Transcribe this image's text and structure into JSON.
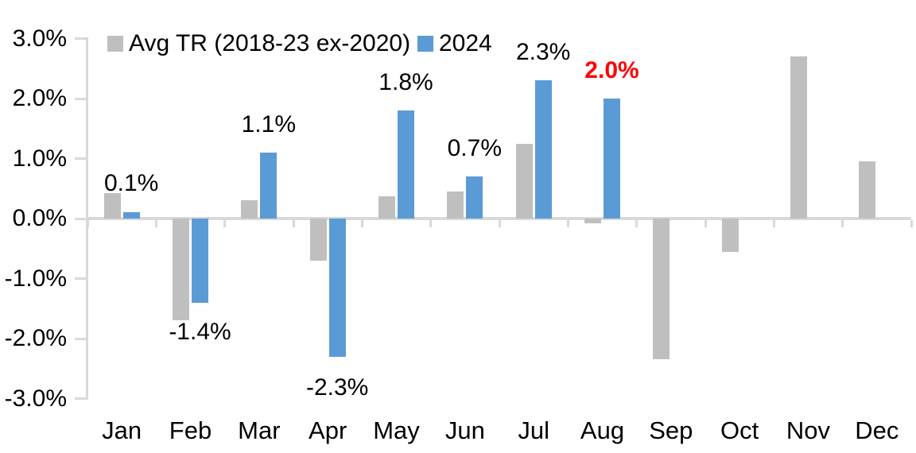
{
  "chart_data": {
    "type": "bar",
    "title": "",
    "categories": [
      "Jan",
      "Feb",
      "Mar",
      "Apr",
      "May",
      "Jun",
      "Jul",
      "Aug",
      "Sep",
      "Oct",
      "Nov",
      "Dec"
    ],
    "y_ticks": [
      "3.0%",
      "2.0%",
      "1.0%",
      "0.0%",
      "-1.0%",
      "-2.0%",
      "-3.0%"
    ],
    "ylim": [
      -3.0,
      3.0
    ],
    "y_unit": "percent",
    "grid": false,
    "legend_position": "top-left",
    "series": [
      {
        "name": "Avg TR (2018-23 ex-2020)",
        "color": "#BFBFBF",
        "values": [
          0.42,
          -1.7,
          0.3,
          -0.7,
          0.37,
          0.45,
          1.25,
          -0.08,
          -2.35,
          -0.55,
          2.7,
          0.95
        ]
      },
      {
        "name": "2024",
        "color": "#5B9BD5",
        "values": [
          0.1,
          -1.4,
          1.1,
          -2.3,
          1.8,
          0.7,
          2.3,
          2.0,
          null,
          null,
          null,
          null
        ],
        "labels": [
          {
            "text": "0.1%",
            "color": "#000000",
            "bold": false
          },
          {
            "text": "-1.4%",
            "color": "#000000",
            "bold": false
          },
          {
            "text": "1.1%",
            "color": "#000000",
            "bold": false
          },
          {
            "text": "-2.3%",
            "color": "#000000",
            "bold": false
          },
          {
            "text": "1.8%",
            "color": "#000000",
            "bold": false
          },
          {
            "text": "0.7%",
            "color": "#000000",
            "bold": false
          },
          {
            "text": "2.3%",
            "color": "#000000",
            "bold": false
          },
          {
            "text": "2.0%",
            "color": "#FF0000",
            "bold": true
          },
          null,
          null,
          null,
          null
        ]
      }
    ]
  },
  "legend": {
    "items": [
      {
        "label": "Avg TR (2018-23 ex-2020)",
        "color": "#BFBFBF"
      },
      {
        "label": "2024",
        "color": "#5B9BD5"
      }
    ]
  },
  "colors": {
    "axis_line": "#D9D9D9",
    "text": "#000000",
    "highlight": "#FF0000",
    "background": "#FFFFFF"
  }
}
